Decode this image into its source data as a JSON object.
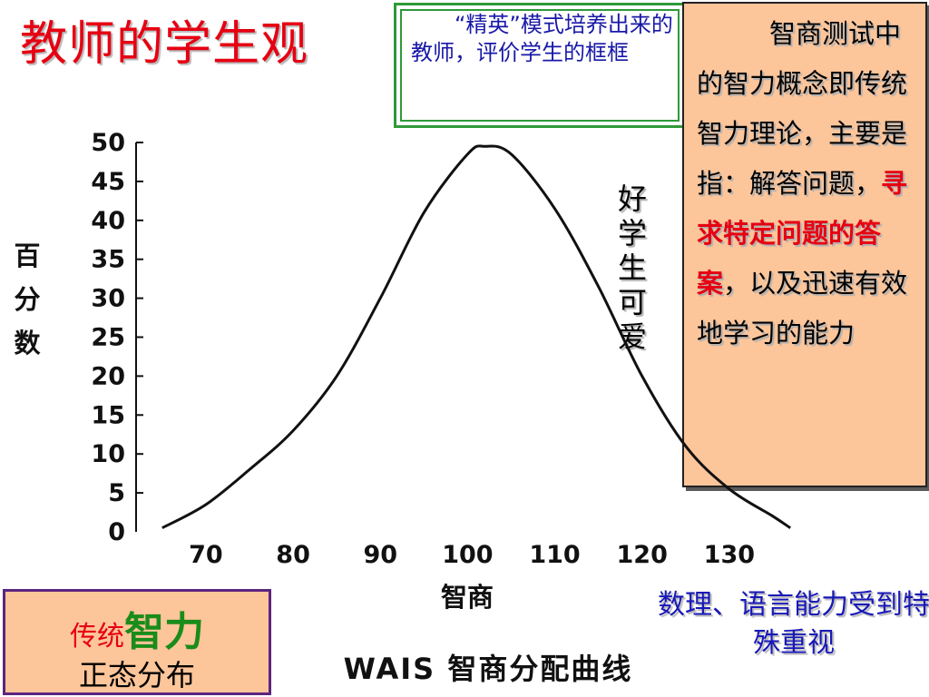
{
  "slide": {
    "title": "教师的学生观"
  },
  "callouts": {
    "elite": "“精英”模式培养出来的教师，评价学生的框框",
    "iq_concept": {
      "part1": "智商测试中的智力概念即传统智力理论，主要是指：解答问题，",
      "highlight": "寻求特定问题的答案",
      "part2": "，以及迅速有效地学习的能力"
    },
    "good_student": "好学生可爱",
    "math_note": "数理、语言能力受到特殊重视",
    "distribution": {
      "prefix": "传统",
      "emphasis": "智力",
      "line2": "正态分布"
    }
  },
  "colors": {
    "title": "#e60012",
    "callout_text_blue": "#1818a8",
    "green_frame": "#2e9a3a",
    "peach_fill": "#fdc59a",
    "purple_border": "#5c2580",
    "curve": "#111111"
  },
  "chart_data": {
    "type": "line",
    "title": "",
    "caption": "WAIS 智商分配曲线",
    "xlabel": "智商",
    "ylabel": "百分数",
    "x_ticks": [
      70,
      80,
      90,
      100,
      110,
      120,
      130
    ],
    "y_ticks": [
      0,
      5,
      10,
      15,
      20,
      25,
      30,
      35,
      40,
      45,
      50
    ],
    "xlim": [
      62,
      140
    ],
    "ylim": [
      0,
      50
    ],
    "grid": false,
    "series": [
      {
        "x": [
          65,
          70,
          75,
          80,
          85,
          90,
          95,
          100,
          102,
          105,
          110,
          115,
          120,
          125,
          130,
          135,
          137
        ],
        "y": [
          0.5,
          3.5,
          8,
          13,
          20,
          30,
          41,
          48.5,
          49.5,
          48.5,
          41.5,
          31.5,
          20,
          11,
          5.5,
          2,
          0.5
        ]
      }
    ]
  }
}
